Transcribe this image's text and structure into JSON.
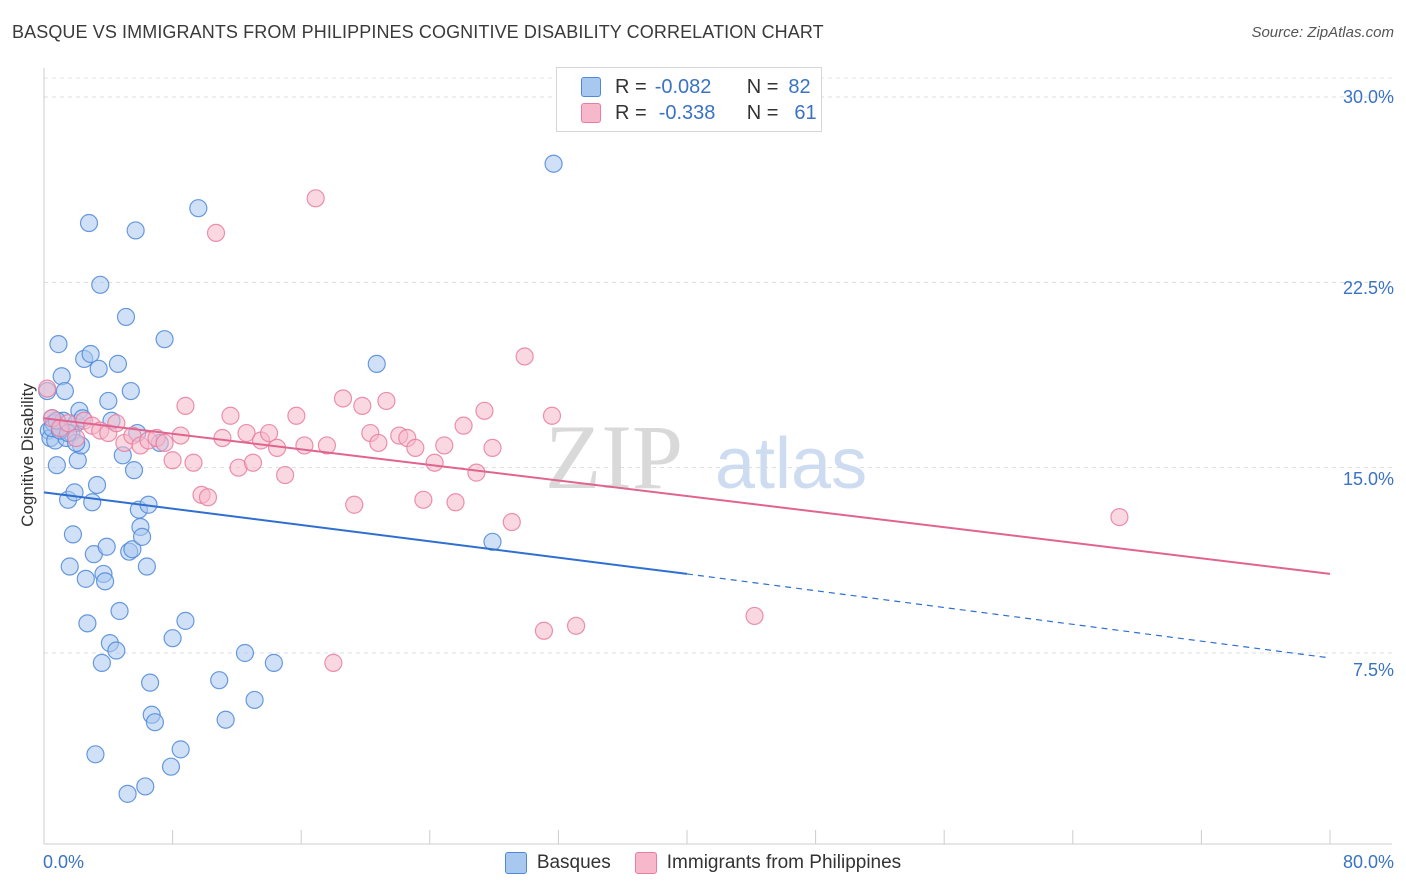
{
  "header": {
    "title": "BASQUE VS IMMIGRANTS FROM PHILIPPINES COGNITIVE DISABILITY CORRELATION CHART",
    "source": "Source: ZipAtlas.com"
  },
  "watermark": "ZIPatlas",
  "colors": {
    "basques_fill": "#a9c8f0",
    "basques_stroke": "#4f88d8",
    "basques_line": "#2f6fd0",
    "phil_fill": "#f6b8ca",
    "phil_stroke": "#e77ea0",
    "phil_line": "#e0648e",
    "tick_label": "#3a73c4"
  },
  "legend": {
    "rows": [
      {
        "r_label": "R =",
        "r_value": "-0.082",
        "n_label": "N =",
        "n_value": "82"
      },
      {
        "r_label": "R =",
        "r_value": "-0.338",
        "n_label": "N =",
        "n_value": "61"
      }
    ]
  },
  "bottom_legend": {
    "basques": "Basques",
    "philippines": "Immigrants from Philippines"
  },
  "chart_data": {
    "type": "scatter",
    "title": "BASQUE VS IMMIGRANTS FROM PHILIPPINES COGNITIVE DISABILITY CORRELATION CHART",
    "xlabel": "",
    "ylabel": "Cognitive Disability",
    "xlim": [
      0,
      80
    ],
    "ylim": [
      0,
      31.5
    ],
    "x_tick_labels": [
      "0.0%",
      "80.0%"
    ],
    "y_ticks": [
      7.5,
      15.0,
      22.5,
      30.0
    ],
    "y_tick_labels": [
      "7.5%",
      "15.0%",
      "22.5%",
      "30.0%"
    ],
    "grid": true,
    "series": [
      {
        "name": "Basques",
        "R": -0.082,
        "N": 82,
        "trend": {
          "x0": 0,
          "y0": 14.0,
          "x1": 40,
          "y1": 10.7,
          "dash_to_x": 80,
          "dash_to_y": 7.3
        },
        "points": [
          [
            0.2,
            18.1
          ],
          [
            0.3,
            16.5
          ],
          [
            0.4,
            16.2
          ],
          [
            0.5,
            17.0
          ],
          [
            0.6,
            16.8
          ],
          [
            0.7,
            16.1
          ],
          [
            0.8,
            15.1
          ],
          [
            0.9,
            20.0
          ],
          [
            1.0,
            16.6
          ],
          [
            1.1,
            18.7
          ],
          [
            1.2,
            16.9
          ],
          [
            1.3,
            18.1
          ],
          [
            1.4,
            16.2
          ],
          [
            1.5,
            13.7
          ],
          [
            1.6,
            11.0
          ],
          [
            1.7,
            16.4
          ],
          [
            1.8,
            12.3
          ],
          [
            1.9,
            14.0
          ],
          [
            2.0,
            16.8
          ],
          [
            2.1,
            15.3
          ],
          [
            2.2,
            17.3
          ],
          [
            2.3,
            15.9
          ],
          [
            2.4,
            17.0
          ],
          [
            2.5,
            19.4
          ],
          [
            2.6,
            10.5
          ],
          [
            2.7,
            8.7
          ],
          [
            2.8,
            24.9
          ],
          [
            2.9,
            19.6
          ],
          [
            3.0,
            13.6
          ],
          [
            3.1,
            11.5
          ],
          [
            3.2,
            3.4
          ],
          [
            3.3,
            14.3
          ],
          [
            3.4,
            19.0
          ],
          [
            3.5,
            22.4
          ],
          [
            3.6,
            7.1
          ],
          [
            3.7,
            10.7
          ],
          [
            3.8,
            10.4
          ],
          [
            3.9,
            11.8
          ],
          [
            4.0,
            17.7
          ],
          [
            4.1,
            7.9
          ],
          [
            4.2,
            16.9
          ],
          [
            4.5,
            7.6
          ],
          [
            4.6,
            19.2
          ],
          [
            4.7,
            9.2
          ],
          [
            4.9,
            15.5
          ],
          [
            5.1,
            21.1
          ],
          [
            5.2,
            1.8
          ],
          [
            5.3,
            11.6
          ],
          [
            5.4,
            18.1
          ],
          [
            5.5,
            11.7
          ],
          [
            5.6,
            14.9
          ],
          [
            5.7,
            24.6
          ],
          [
            5.8,
            16.4
          ],
          [
            5.9,
            13.3
          ],
          [
            6.0,
            12.6
          ],
          [
            6.1,
            12.2
          ],
          [
            6.3,
            2.1
          ],
          [
            6.4,
            11.0
          ],
          [
            6.5,
            13.5
          ],
          [
            6.6,
            6.3
          ],
          [
            6.7,
            5.0
          ],
          [
            6.9,
            4.7
          ],
          [
            7.2,
            16.0
          ],
          [
            7.5,
            20.2
          ],
          [
            7.9,
            2.9
          ],
          [
            8.0,
            8.1
          ],
          [
            8.5,
            3.6
          ],
          [
            8.8,
            8.8
          ],
          [
            9.6,
            25.5
          ],
          [
            10.9,
            6.4
          ],
          [
            11.3,
            4.8
          ],
          [
            12.5,
            7.5
          ],
          [
            13.1,
            5.6
          ],
          [
            14.3,
            7.1
          ],
          [
            20.7,
            19.2
          ],
          [
            27.9,
            12.0
          ],
          [
            31.7,
            27.3
          ],
          [
            0.5,
            16.6
          ],
          [
            1.0,
            16.5
          ],
          [
            2.0,
            16.0
          ],
          [
            0.8,
            16.9
          ],
          [
            1.5,
            16.4
          ]
        ]
      },
      {
        "name": "Immigrants from Philippines",
        "R": -0.338,
        "N": 61,
        "trend": {
          "x0": 0,
          "y0": 17.0,
          "x1": 80,
          "y1": 10.7
        },
        "points": [
          [
            0.2,
            18.2
          ],
          [
            0.5,
            17.0
          ],
          [
            1.0,
            16.6
          ],
          [
            1.5,
            16.8
          ],
          [
            2.0,
            16.2
          ],
          [
            2.5,
            16.9
          ],
          [
            3.0,
            16.7
          ],
          [
            3.5,
            16.5
          ],
          [
            4.0,
            16.4
          ],
          [
            4.5,
            16.8
          ],
          [
            5.0,
            16.0
          ],
          [
            5.5,
            16.3
          ],
          [
            6.0,
            15.9
          ],
          [
            6.5,
            16.1
          ],
          [
            7.0,
            16.2
          ],
          [
            7.5,
            16.0
          ],
          [
            8.0,
            15.3
          ],
          [
            8.5,
            16.3
          ],
          [
            8.8,
            17.5
          ],
          [
            9.3,
            15.2
          ],
          [
            9.8,
            13.9
          ],
          [
            10.2,
            13.8
          ],
          [
            10.7,
            24.5
          ],
          [
            11.1,
            16.2
          ],
          [
            11.6,
            17.1
          ],
          [
            12.1,
            15.0
          ],
          [
            12.6,
            16.4
          ],
          [
            13.0,
            15.2
          ],
          [
            13.5,
            16.1
          ],
          [
            14.0,
            16.4
          ],
          [
            14.5,
            15.8
          ],
          [
            15.0,
            14.7
          ],
          [
            15.7,
            17.1
          ],
          [
            16.2,
            15.9
          ],
          [
            16.9,
            25.9
          ],
          [
            17.6,
            15.9
          ],
          [
            18.0,
            7.1
          ],
          [
            18.6,
            17.8
          ],
          [
            19.3,
            13.5
          ],
          [
            19.8,
            17.5
          ],
          [
            20.3,
            16.4
          ],
          [
            20.8,
            16.0
          ],
          [
            21.3,
            17.7
          ],
          [
            22.1,
            16.3
          ],
          [
            22.6,
            16.2
          ],
          [
            23.1,
            15.8
          ],
          [
            23.6,
            13.7
          ],
          [
            24.3,
            15.2
          ],
          [
            24.9,
            15.9
          ],
          [
            25.6,
            13.6
          ],
          [
            26.1,
            16.7
          ],
          [
            26.9,
            14.8
          ],
          [
            27.4,
            17.3
          ],
          [
            27.9,
            15.8
          ],
          [
            29.1,
            12.8
          ],
          [
            29.9,
            19.5
          ],
          [
            31.1,
            8.4
          ],
          [
            31.6,
            17.1
          ],
          [
            33.1,
            8.6
          ],
          [
            44.2,
            9.0
          ],
          [
            66.9,
            13.0
          ]
        ]
      }
    ]
  }
}
